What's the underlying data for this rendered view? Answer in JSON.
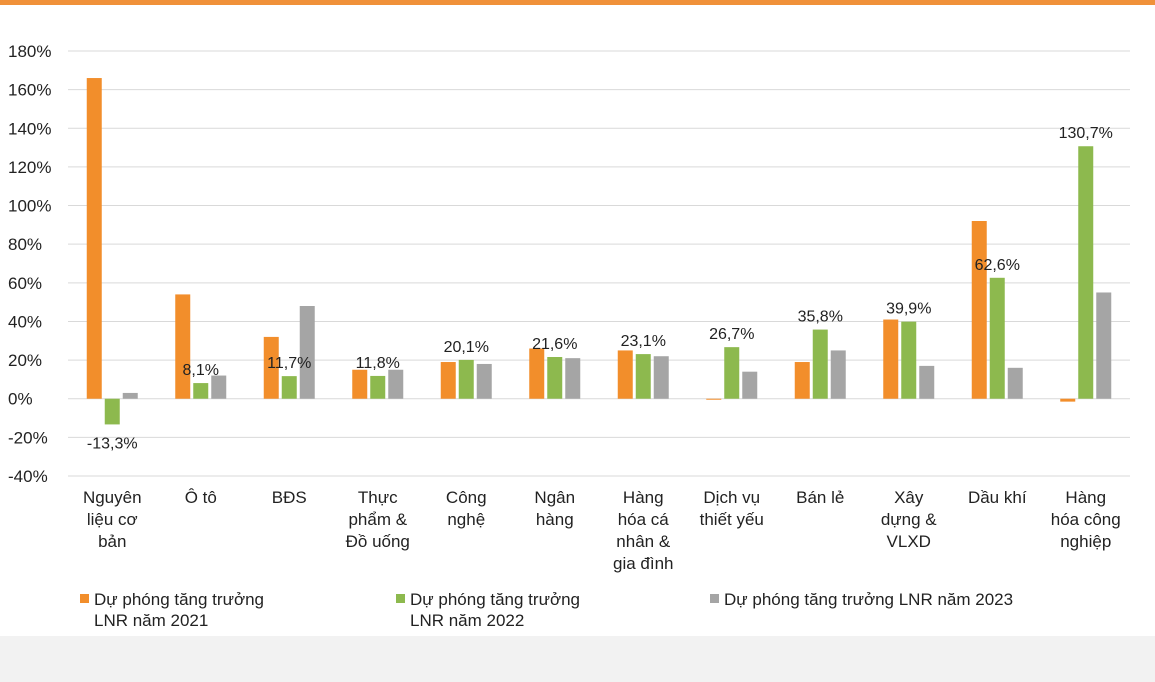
{
  "colors": {
    "accent_rule": "#f0913a",
    "series_2021": "#f28e2b",
    "series_2022": "#8db94e",
    "series_2023": "#a5a5a5",
    "gridline": "#d9d9d9"
  },
  "chart_data": {
    "type": "bar",
    "title": "",
    "xlabel": "",
    "ylabel": "",
    "ylim": [
      -40,
      180
    ],
    "ytick_step": 20,
    "yticks": [
      "180%",
      "160%",
      "140%",
      "120%",
      "100%",
      "80%",
      "60%",
      "40%",
      "20%",
      "0%",
      "-20%",
      "-40%"
    ],
    "grid": true,
    "legend_position": "bottom",
    "categories": [
      [
        "Nguyên",
        "liệu cơ",
        "bản"
      ],
      [
        "Ô tô"
      ],
      [
        "BĐS"
      ],
      [
        "Thực",
        "phẩm &",
        "Đồ uống"
      ],
      [
        "Công",
        "nghệ"
      ],
      [
        "Ngân",
        "hàng"
      ],
      [
        "Hàng",
        "hóa cá",
        "nhân &",
        "gia đình"
      ],
      [
        "Dịch vụ",
        "thiết yếu"
      ],
      [
        "Bán lẻ"
      ],
      [
        "Xây",
        "dựng &",
        "VLXD"
      ],
      [
        "Dầu khí"
      ],
      [
        "Hàng",
        "hóa công",
        "nghiệp"
      ]
    ],
    "series": [
      {
        "name": [
          "Dự phóng tăng trưởng",
          "LNR năm 2021"
        ],
        "color": "#f28e2b",
        "values": [
          166,
          54,
          32,
          15,
          19,
          26,
          25,
          -0.5,
          19,
          41,
          92,
          -1.5
        ]
      },
      {
        "name": [
          "Dự phóng tăng trưởng",
          "LNR năm 2022"
        ],
        "color": "#8db94e",
        "values": [
          -13.3,
          8.1,
          11.7,
          11.8,
          20.1,
          21.6,
          23.1,
          26.7,
          35.8,
          39.9,
          62.6,
          130.7
        ],
        "labels": [
          "-13,3%",
          "8,1%",
          "11,7%",
          "11,8%",
          "20,1%",
          "21,6%",
          "23,1%",
          "26,7%",
          "35,8%",
          "39,9%",
          "62,6%",
          "130,7%"
        ]
      },
      {
        "name": [
          "Dự phóng tăng trưởng LNR năm 2023"
        ],
        "color": "#a5a5a5",
        "values": [
          3,
          12,
          48,
          15,
          18,
          21,
          22,
          14,
          25,
          17,
          16,
          55
        ]
      }
    ]
  }
}
